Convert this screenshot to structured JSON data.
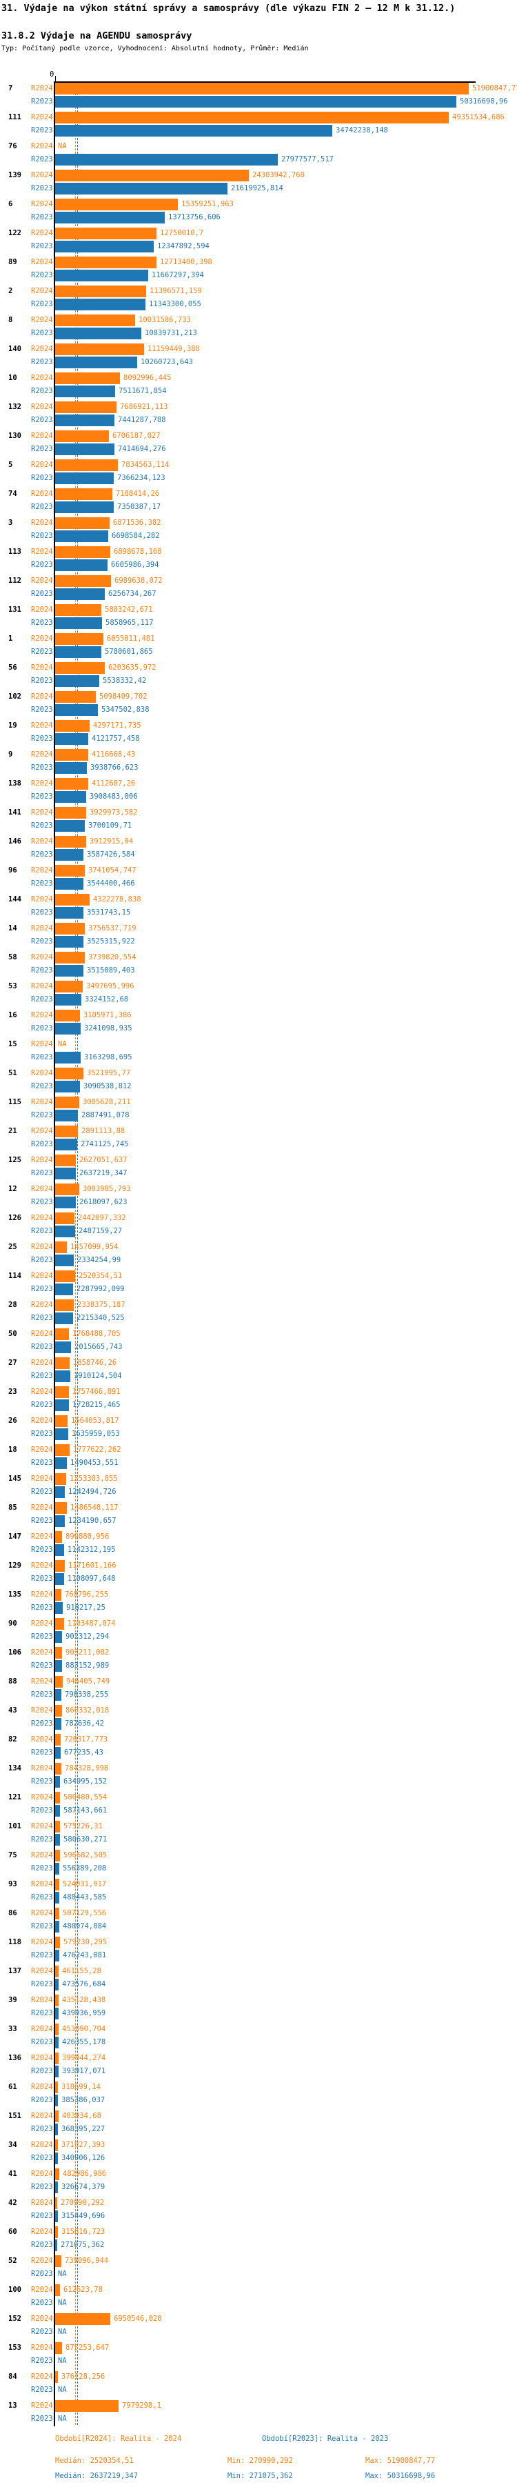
{
  "title": "31. Výdaje na výkon státní správy a samosprávy (dle výkazu FIN 2 – 12 M k 31.12.)",
  "subtitle": "31.8.2 Výdaje na AGENDU samosprávy",
  "meta": "Typ: Počítaný podle vzorce, Vyhodnocení: Absolutní hodnoty, Průměr: Medián",
  "chart_data": {
    "type": "bar",
    "orientation": "horizontal-grouped",
    "axis": {
      "zero_label": "0",
      "max_value": 51900847.77
    },
    "medians": {
      "r2024": 2520354.51,
      "r2023": 2637219.347
    },
    "series": [
      {
        "key": "r2024",
        "label": "R2024",
        "color": "#ff7f0e",
        "legend": "Období[R2024]: Realita - 2024",
        "stats": {
          "median": "Medián: 2520354,51",
          "min": "Min: 270990,292",
          "max": "Max: 51900847,77"
        }
      },
      {
        "key": "r2023",
        "label": "R2023",
        "color": "#1f77b4",
        "legend": "Období[R2023]: Realita - 2023",
        "stats": {
          "median": "Medián: 2637219,347",
          "min": "Min: 271075,362",
          "max": "Max: 50316698,96"
        }
      }
    ],
    "na_label": "NA",
    "groups": [
      {
        "id": "7",
        "r2024": "51900847,77",
        "r2023": "50316698,96"
      },
      {
        "id": "111",
        "r2024": "49351534,686",
        "r2023": "34742238,148"
      },
      {
        "id": "76",
        "r2024": null,
        "r2023": "27977577,517"
      },
      {
        "id": "139",
        "r2024": "24303942,768",
        "r2023": "21619925,814"
      },
      {
        "id": "6",
        "r2024": "15359251,963",
        "r2023": "13713756,606"
      },
      {
        "id": "122",
        "r2024": "12750010,7",
        "r2023": "12347892,594"
      },
      {
        "id": "89",
        "r2024": "12713400,398",
        "r2023": "11667297,394"
      },
      {
        "id": "2",
        "r2024": "11396571,159",
        "r2023": "11343300,055"
      },
      {
        "id": "8",
        "r2024": "10031586,733",
        "r2023": "10839731,213"
      },
      {
        "id": "140",
        "r2024": "11159449,388",
        "r2023": "10260723,643"
      },
      {
        "id": "10",
        "r2024": "8092996,445",
        "r2023": "7511671,854"
      },
      {
        "id": "132",
        "r2024": "7686921,113",
        "r2023": "7441287,788"
      },
      {
        "id": "130",
        "r2024": "6706187,027",
        "r2023": "7414694,276"
      },
      {
        "id": "5",
        "r2024": "7834563,114",
        "r2023": "7366234,123"
      },
      {
        "id": "74",
        "r2024": "7188414,26",
        "r2023": "7350387,17"
      },
      {
        "id": "3",
        "r2024": "6871536,382",
        "r2023": "6698584,282"
      },
      {
        "id": "113",
        "r2024": "6898678,168",
        "r2023": "6605986,394"
      },
      {
        "id": "112",
        "r2024": "6989638,072",
        "r2023": "6256734,267"
      },
      {
        "id": "131",
        "r2024": "5803242,671",
        "r2023": "5858965,117"
      },
      {
        "id": "1",
        "r2024": "6055011,481",
        "r2023": "5780601,865"
      },
      {
        "id": "56",
        "r2024": "6203635,972",
        "r2023": "5538332,42"
      },
      {
        "id": "102",
        "r2024": "5098409,702",
        "r2023": "5347502,838"
      },
      {
        "id": "19",
        "r2024": "4297171,735",
        "r2023": "4121757,458"
      },
      {
        "id": "9",
        "r2024": "4116668,43",
        "r2023": "3938766,623"
      },
      {
        "id": "138",
        "r2024": "4112607,26",
        "r2023": "3908483,006"
      },
      {
        "id": "141",
        "r2024": "3929973,582",
        "r2023": "3700109,71"
      },
      {
        "id": "146",
        "r2024": "3912915,04",
        "r2023": "3587426,584"
      },
      {
        "id": "96",
        "r2024": "3741054,747",
        "r2023": "3544400,466"
      },
      {
        "id": "144",
        "r2024": "4322278,838",
        "r2023": "3531743,15"
      },
      {
        "id": "14",
        "r2024": "3756537,719",
        "r2023": "3525315,922"
      },
      {
        "id": "58",
        "r2024": "3739820,554",
        "r2023": "3515089,403"
      },
      {
        "id": "53",
        "r2024": "3497695,996",
        "r2023": "3324152,68"
      },
      {
        "id": "16",
        "r2024": "3105971,386",
        "r2023": "3241098,935"
      },
      {
        "id": "15",
        "r2024": null,
        "r2023": "3163298,695"
      },
      {
        "id": "51",
        "r2024": "3521995,77",
        "r2023": "3090538,812"
      },
      {
        "id": "115",
        "r2024": "3005628,211",
        "r2023": "2887491,078"
      },
      {
        "id": "21",
        "r2024": "2891113,88",
        "r2023": "2741125,745"
      },
      {
        "id": "125",
        "r2024": "2627051,637",
        "r2023": "2637219,347"
      },
      {
        "id": "12",
        "r2024": "3003985,793",
        "r2023": "2618097,623"
      },
      {
        "id": "126",
        "r2024": "2442097,332",
        "r2023": "2487159,27"
      },
      {
        "id": "25",
        "r2024": "1457099,954",
        "r2023": "2334254,99"
      },
      {
        "id": "114",
        "r2024": "2520354,51",
        "r2023": "2287992,099"
      },
      {
        "id": "28",
        "r2024": "2338375,187",
        "r2023": "2215340,525"
      },
      {
        "id": "50",
        "r2024": "1768488,705",
        "r2023": "2015665,743"
      },
      {
        "id": "27",
        "r2024": "1858746,26",
        "r2023": "1910124,504"
      },
      {
        "id": "23",
        "r2024": "1757466,891",
        "r2023": "1728215,465"
      },
      {
        "id": "26",
        "r2024": "1564053,817",
        "r2023": "1635959,053"
      },
      {
        "id": "18",
        "r2024": "1777622,262",
        "r2023": "1490453,551"
      },
      {
        "id": "145",
        "r2024": "1353303,855",
        "r2023": "1242494,726"
      },
      {
        "id": "85",
        "r2024": "1486548,117",
        "r2023": "1234190,657"
      },
      {
        "id": "147",
        "r2024": "899880,956",
        "r2023": "1142312,195"
      },
      {
        "id": "129",
        "r2024": "1171601,166",
        "r2023": "1108097,648"
      },
      {
        "id": "135",
        "r2024": "768796,255",
        "r2023": "918217,25"
      },
      {
        "id": "90",
        "r2024": "1103487,074",
        "r2023": "902312,294"
      },
      {
        "id": "106",
        "r2024": "903211,082",
        "r2023": "883152,989"
      },
      {
        "id": "88",
        "r2024": "946405,749",
        "r2023": "798338,255"
      },
      {
        "id": "43",
        "r2024": "860332,018",
        "r2023": "782636,42"
      },
      {
        "id": "82",
        "r2024": "720317,773",
        "r2023": "677235,43"
      },
      {
        "id": "134",
        "r2024": "784328,998",
        "r2023": "634995,152"
      },
      {
        "id": "121",
        "r2024": "580480,554",
        "r2023": "587143,661"
      },
      {
        "id": "101",
        "r2024": "575226,31",
        "r2023": "580630,271"
      },
      {
        "id": "75",
        "r2024": "596682,505",
        "r2023": "556389,208"
      },
      {
        "id": "93",
        "r2024": "524031,917",
        "r2023": "488443,585"
      },
      {
        "id": "86",
        "r2024": "507129,556",
        "r2023": "480974,884"
      },
      {
        "id": "118",
        "r2024": "579230,295",
        "r2023": "476243,081"
      },
      {
        "id": "137",
        "r2024": "461155,28",
        "r2023": "473576,684"
      },
      {
        "id": "39",
        "r2024": "435128,438",
        "r2023": "439936,959"
      },
      {
        "id": "33",
        "r2024": "453090,704",
        "r2023": "426355,178"
      },
      {
        "id": "136",
        "r2024": "399944,274",
        "r2023": "393917,071"
      },
      {
        "id": "61",
        "r2024": "318699,14",
        "r2023": "385386,037"
      },
      {
        "id": "151",
        "r2024": "403934,68",
        "r2023": "368395,227"
      },
      {
        "id": "34",
        "r2024": "371027,393",
        "r2023": "340906,126"
      },
      {
        "id": "41",
        "r2024": "482986,986",
        "r2023": "326674,379"
      },
      {
        "id": "42",
        "r2024": "270990,292",
        "r2023": "315449,696"
      },
      {
        "id": "60",
        "r2024": "315816,723",
        "r2023": "271075,362"
      },
      {
        "id": "52",
        "r2024": "739096,944",
        "r2023": null
      },
      {
        "id": "100",
        "r2024": "612623,78",
        "r2023": null
      },
      {
        "id": "152",
        "r2024": "6950546,028",
        "r2023": null
      },
      {
        "id": "153",
        "r2024": "875253,647",
        "r2023": null
      },
      {
        "id": "84",
        "r2024": "376128,256",
        "r2023": null
      },
      {
        "id": "13",
        "r2024": "7979298,1",
        "r2023": null
      }
    ]
  }
}
